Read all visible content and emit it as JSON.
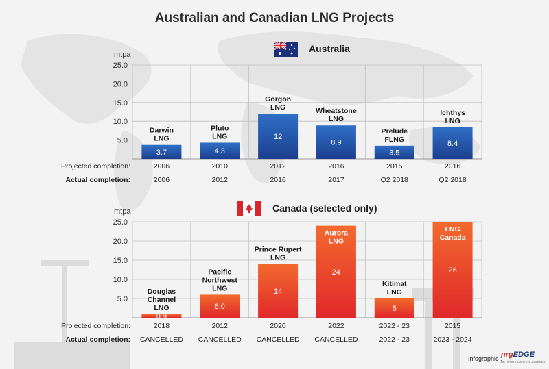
{
  "title": "Australian and Canadian LNG Projects",
  "footer": {
    "label": "Infographic :",
    "brand_a": "nrg",
    "brand_b": "EDGE",
    "brand_sub": "NETWORK CAREER JOURNEY"
  },
  "colors": {
    "australia_bar_top": "#2f6fc6",
    "australia_bar_bottom": "#1c3f8f",
    "canada_bar_top": "#f26a2e",
    "canada_bar_bottom": "#e0282a"
  },
  "chart_data": [
    {
      "type": "bar",
      "country": "Australia",
      "ylabel": "mtpa",
      "ylim": [
        0,
        25
      ],
      "yticks": [
        "5.0",
        "10.0",
        "15.0",
        "20.0",
        "25.0"
      ],
      "categories": [
        "Darwin\nLNG",
        "Pluto\nLNG",
        "Gorgon\nLNG",
        "Wheatstone\nLNG",
        "Prelude\nFLNG",
        "Ichthys\nLNG"
      ],
      "values": [
        3.7,
        4.3,
        12,
        8.9,
        3.5,
        8.4
      ],
      "value_labels": [
        "3.7",
        "4.3",
        "12",
        "8.9",
        "3.5",
        "8.4"
      ],
      "row_labels": {
        "projected": "Projected completion:",
        "actual": "Actual completion:"
      },
      "projected": [
        "2006",
        "2010",
        "2012",
        "2016",
        "2015",
        "2016"
      ],
      "actual": [
        "2006",
        "2012",
        "2016",
        "2017",
        "Q2 2018",
        "Q2 2018"
      ]
    },
    {
      "type": "bar",
      "country": "Canada (selected only)",
      "ylabel": "mtpa",
      "ylim": [
        0,
        25
      ],
      "yticks": [
        "5.0",
        "10.0",
        "15.0",
        "20.0",
        "25.0"
      ],
      "categories": [
        "Douglas\nChannel\nLNG",
        "Pacific\nNorthwest\nLNG",
        "Prince Rupert\nLNG",
        "Aurora\nLNG",
        "Kitimat\nLNG",
        "LNG\nCanada"
      ],
      "values": [
        0.9,
        6.0,
        14,
        24,
        5,
        26
      ],
      "value_labels": [
        "0.9",
        "6.0",
        "14",
        "24",
        "5",
        "26"
      ],
      "row_labels": {
        "projected": "Projected completion:",
        "actual": "Actual completion:"
      },
      "projected": [
        "2018",
        "2012",
        "2020",
        "2022",
        "2022 - 23",
        "2015"
      ],
      "actual": [
        "CANCELLED",
        "CANCELLED",
        "CANCELLED",
        "CANCELLED",
        "2022 - 23",
        "2023 - 2024"
      ]
    }
  ]
}
